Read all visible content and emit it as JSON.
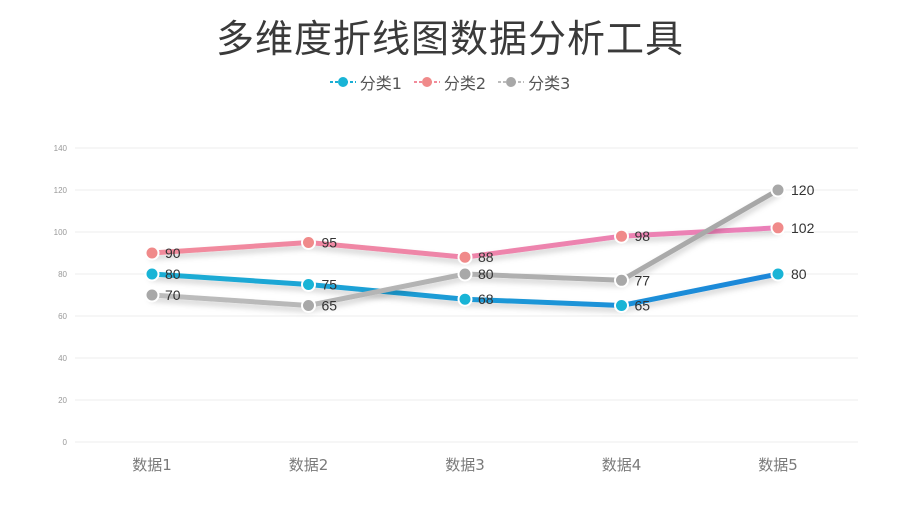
{
  "title": "多维度折线图数据分析工具",
  "chart_data": {
    "type": "line",
    "title": "多维度折线图数据分析工具",
    "categories": [
      "数据1",
      "数据2",
      "数据3",
      "数据4",
      "数据5"
    ],
    "ylim": [
      0,
      140
    ],
    "yticks": [
      0,
      20,
      40,
      60,
      80,
      100,
      120,
      140
    ],
    "grid": true,
    "legend_position": "top-center",
    "series": [
      {
        "name": "分类1",
        "values": [
          80,
          75,
          68,
          65,
          80
        ],
        "color": "#1aaed4",
        "color_end": "#1a86d9",
        "marker": "#19b4d6"
      },
      {
        "name": "分类2",
        "values": [
          90,
          95,
          88,
          98,
          102
        ],
        "color": "#f28b9b",
        "color_end": "#ea7fb9",
        "marker": "#f08a8a"
      },
      {
        "name": "分类3",
        "values": [
          70,
          65,
          80,
          77,
          120
        ],
        "color": "#bdbdbd",
        "color_end": "#a6a6a6",
        "marker": "#a8a8a8"
      }
    ]
  }
}
